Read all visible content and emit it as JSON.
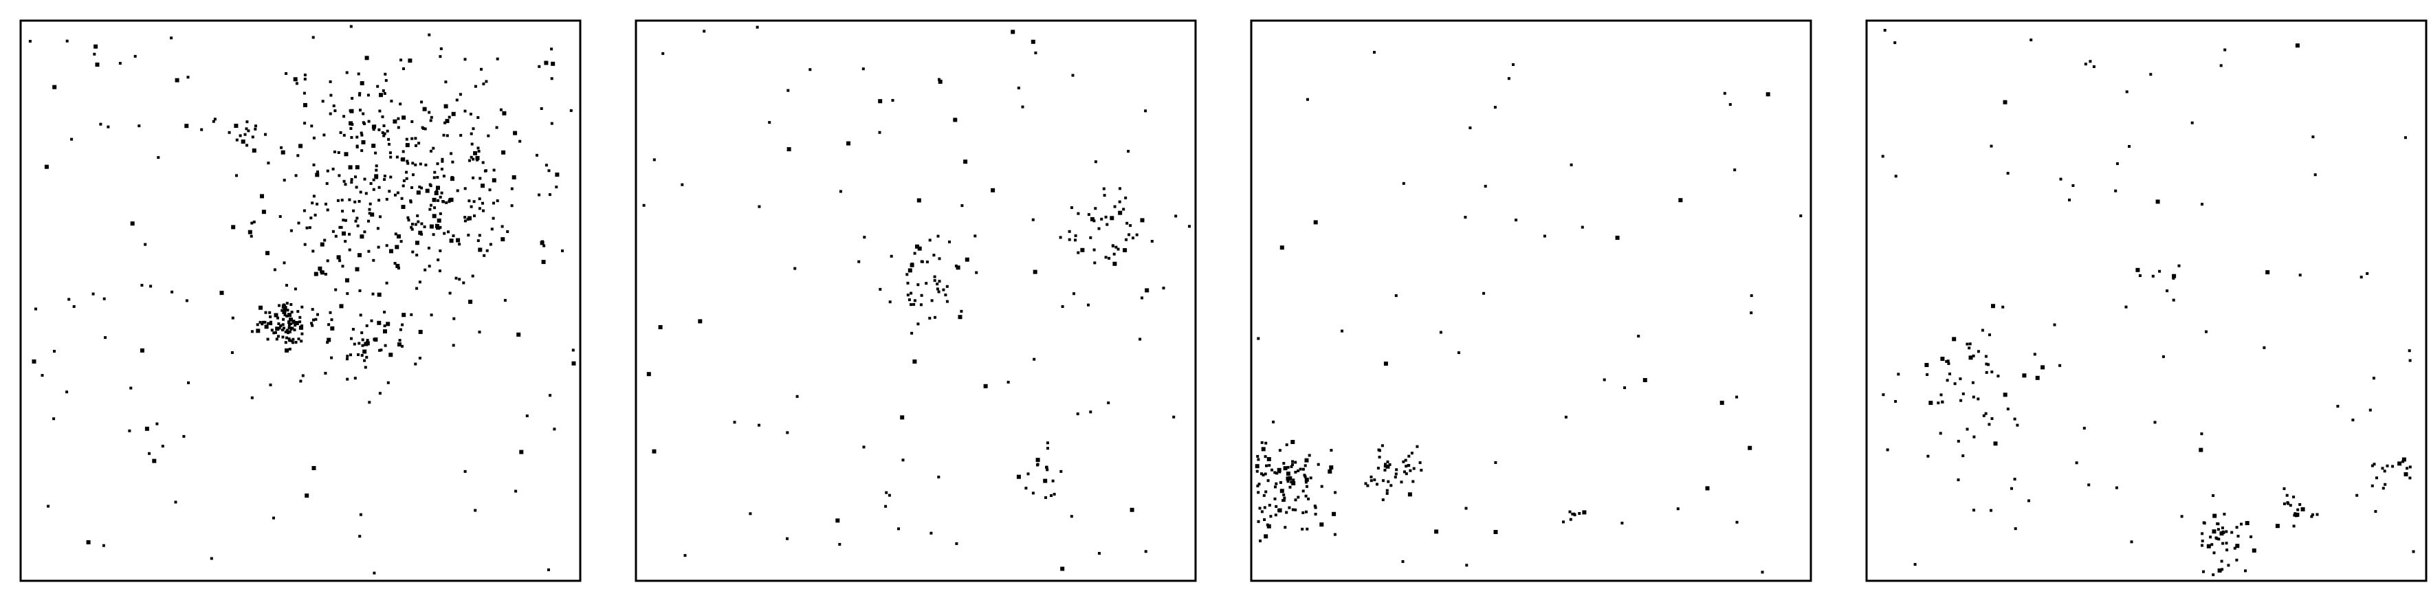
{
  "chart_data": [
    {
      "type": "scatter",
      "title": "",
      "xlabel": "",
      "ylabel": "",
      "xlim": [
        0,
        1
      ],
      "ylim": [
        0,
        1
      ],
      "grid": false,
      "legend": "none",
      "marker_color": "#000000",
      "clusters": [
        {
          "cx": 0.68,
          "cy": 0.72,
          "spread": 0.12,
          "count": 420
        },
        {
          "cx": 0.47,
          "cy": 0.46,
          "spread": 0.022,
          "count": 90
        },
        {
          "cx": 0.62,
          "cy": 0.43,
          "spread": 0.035,
          "count": 40
        },
        {
          "cx": 0.39,
          "cy": 0.8,
          "spread": 0.015,
          "count": 12
        }
      ],
      "background_count": 120,
      "seed": 11
    },
    {
      "type": "scatter",
      "title": "",
      "xlabel": "",
      "ylabel": "",
      "xlim": [
        0,
        1
      ],
      "ylim": [
        0,
        1
      ],
      "grid": false,
      "legend": "none",
      "marker_color": "#000000",
      "clusters": [
        {
          "cx": 0.53,
          "cy": 0.53,
          "spread": 0.035,
          "count": 50
        },
        {
          "cx": 0.83,
          "cy": 0.63,
          "spread": 0.04,
          "count": 45
        },
        {
          "cx": 0.73,
          "cy": 0.19,
          "spread": 0.02,
          "count": 14
        }
      ],
      "background_count": 90,
      "seed": 23
    },
    {
      "type": "scatter",
      "title": "",
      "xlabel": "",
      "ylabel": "",
      "xlim": [
        0,
        1
      ],
      "ylim": [
        0,
        1
      ],
      "grid": false,
      "legend": "none",
      "marker_color": "#000000",
      "clusters": [
        {
          "cx": 0.04,
          "cy": 0.17,
          "spread": 0.045,
          "count": 130
        },
        {
          "cx": 0.24,
          "cy": 0.19,
          "spread": 0.025,
          "count": 40
        },
        {
          "cx": 0.57,
          "cy": 0.11,
          "spread": 0.015,
          "count": 8
        }
      ],
      "background_count": 55,
      "seed": 37
    },
    {
      "type": "scatter",
      "title": "",
      "xlabel": "",
      "ylabel": "",
      "xlim": [
        0,
        1
      ],
      "ylim": [
        0,
        1
      ],
      "grid": false,
      "legend": "none",
      "marker_color": "#000000",
      "clusters": [
        {
          "cx": 0.18,
          "cy": 0.36,
          "spread": 0.06,
          "count": 50
        },
        {
          "cx": 0.64,
          "cy": 0.07,
          "spread": 0.03,
          "count": 45
        },
        {
          "cx": 0.77,
          "cy": 0.12,
          "spread": 0.025,
          "count": 18
        },
        {
          "cx": 0.95,
          "cy": 0.17,
          "spread": 0.03,
          "count": 18
        },
        {
          "cx": 0.53,
          "cy": 0.54,
          "spread": 0.02,
          "count": 8
        }
      ],
      "background_count": 75,
      "seed": 53
    }
  ]
}
